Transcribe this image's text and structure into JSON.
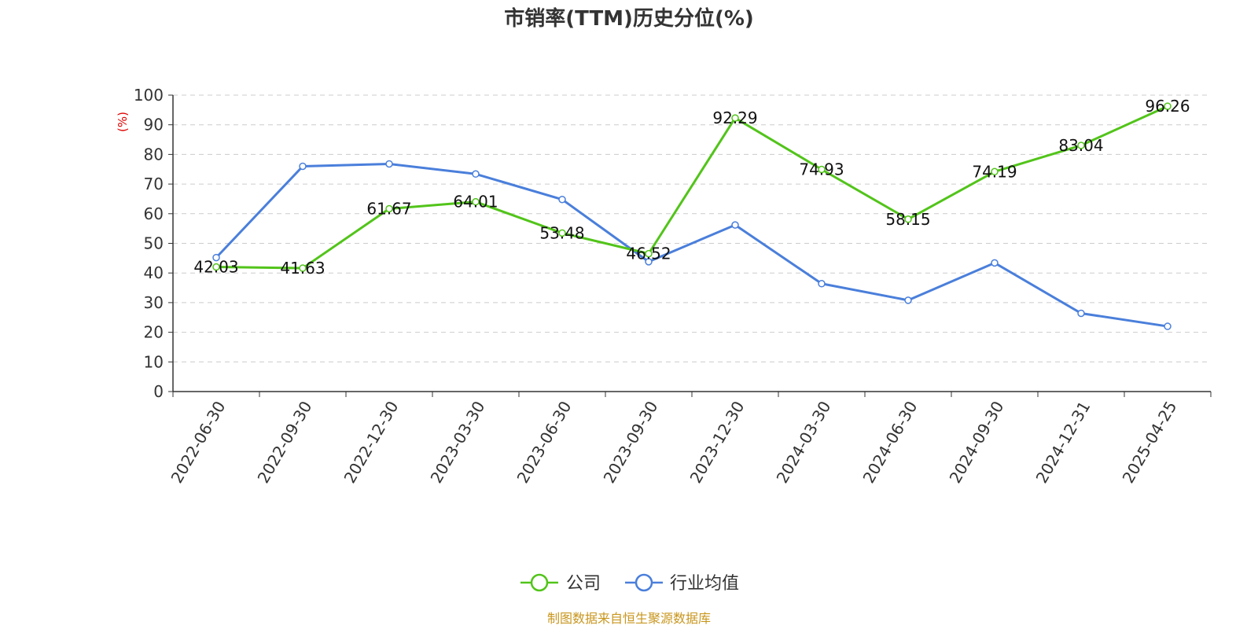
{
  "chart_data": {
    "type": "line",
    "title": "市销率(TTM)历史分位(%)",
    "ylabel": "(%)",
    "ylim": [
      0,
      100
    ],
    "yticks": [
      0,
      10,
      20,
      30,
      40,
      50,
      60,
      70,
      80,
      90,
      100
    ],
    "grid": true,
    "legend_position": "bottom",
    "categories": [
      "2022-06-30",
      "2022-09-30",
      "2022-12-30",
      "2023-03-30",
      "2023-06-30",
      "2023-09-30",
      "2023-12-30",
      "2024-03-30",
      "2024-06-30",
      "2024-09-30",
      "2024-12-31",
      "2025-04-25"
    ],
    "series": [
      {
        "name": "公司",
        "color": "#52c41a",
        "values": [
          42.03,
          41.63,
          61.67,
          64.01,
          53.48,
          46.52,
          92.29,
          74.93,
          58.15,
          74.19,
          83.04,
          96.26
        ],
        "data_labels": [
          "42.03",
          "41.63",
          "61.67",
          "64.01",
          "53.48",
          "46.52",
          "92.29",
          "74.93",
          "58.15",
          "74.19",
          "83.04",
          "96.26"
        ]
      },
      {
        "name": "行业均值",
        "color": "#4a7fdb",
        "values": [
          45.2,
          76.0,
          76.8,
          73.4,
          64.8,
          43.8,
          56.2,
          36.4,
          30.8,
          43.4,
          26.4,
          22.0
        ]
      }
    ],
    "source": "制图数据来自恒生聚源数据库"
  },
  "colors": {
    "axis_label": "#e00000",
    "source": "#c8961e",
    "grid": "#cccccc",
    "axis": "#333333"
  }
}
